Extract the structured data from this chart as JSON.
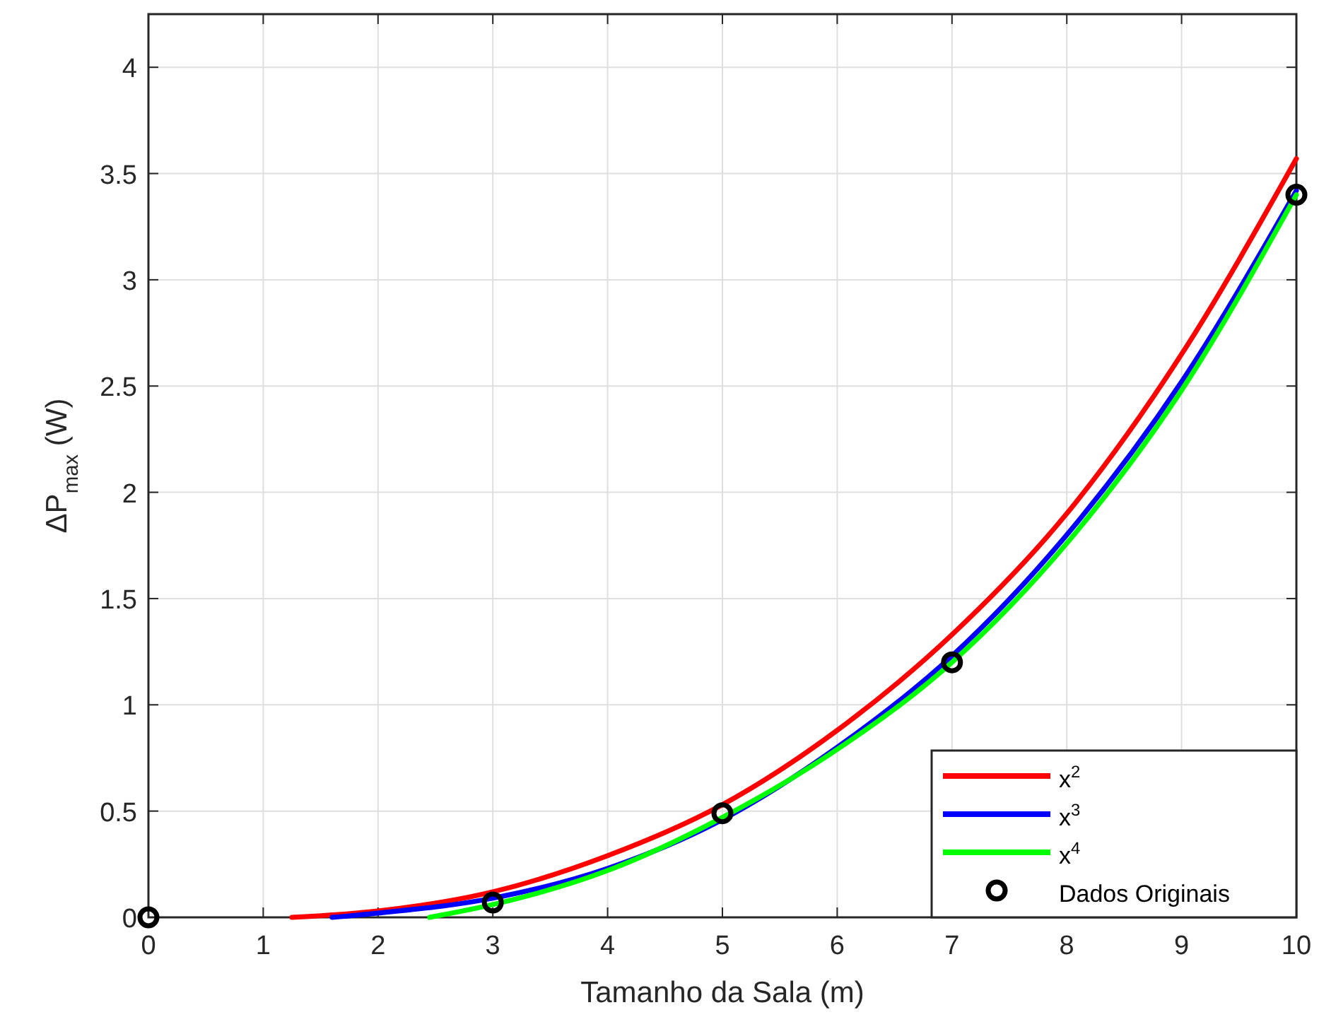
{
  "chart_data": {
    "type": "line",
    "xlabel": "Tamanho da Sala (m)",
    "ylabel": "ΔP$_{max}$ (W)",
    "xlim": [
      0,
      10
    ],
    "ylim": [
      0,
      4.25
    ],
    "xticks": [
      0,
      1,
      2,
      3,
      4,
      5,
      6,
      7,
      8,
      9,
      10
    ],
    "yticks": [
      0,
      0.5,
      1,
      1.5,
      2,
      2.5,
      3,
      3.5,
      4
    ],
    "grid": true,
    "legend": "bottom right",
    "line_style": "solid",
    "series": [
      {
        "name": "x$^{2}$",
        "color": "#ff0000",
        "x": [
          1.25,
          2,
          3,
          4,
          5,
          6,
          7,
          8,
          9,
          10
        ],
        "values": [
          0,
          0.03,
          0.12,
          0.29,
          0.53,
          0.88,
          1.33,
          1.9,
          2.65,
          3.57
        ]
      },
      {
        "name": "x$^{3}$",
        "color": "#0000ff",
        "x": [
          1.6,
          2,
          3,
          4,
          5,
          6,
          7,
          8,
          9,
          10
        ],
        "values": [
          0,
          0.02,
          0.09,
          0.23,
          0.46,
          0.8,
          1.23,
          1.8,
          2.52,
          3.42
        ]
      },
      {
        "name": "x$^{4}$",
        "color": "#00ff00",
        "x": [
          2.45,
          3,
          4,
          5,
          6,
          7,
          8,
          9,
          10
        ],
        "values": [
          0,
          0.06,
          0.22,
          0.47,
          0.79,
          1.2,
          1.76,
          2.48,
          3.4
        ]
      },
      {
        "name": "Dados Originais",
        "color": "#000000",
        "type": "scatter",
        "marker": "circle",
        "x": [
          0,
          3,
          5,
          7,
          10
        ],
        "values": [
          0,
          0.07,
          0.49,
          1.2,
          3.4
        ]
      }
    ]
  }
}
